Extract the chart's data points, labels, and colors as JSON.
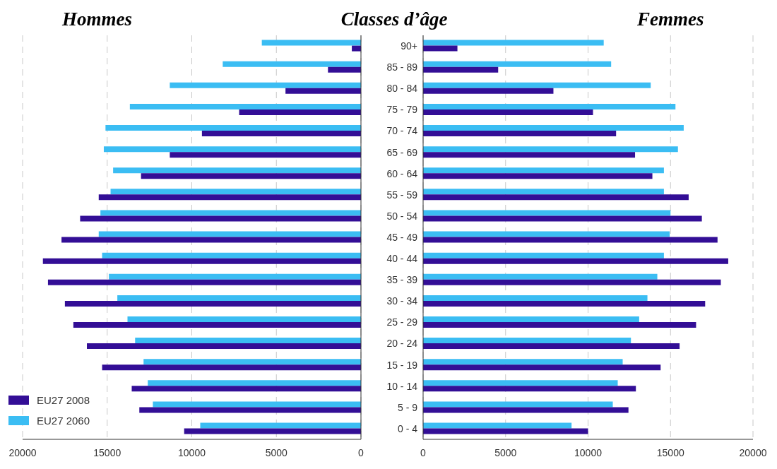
{
  "chart_data": [
    {
      "type": "bar",
      "orientation": "horizontal",
      "title": "Hommes",
      "categories": [
        null,
        null,
        null,
        null,
        null,
        null,
        null,
        null,
        null,
        null,
        null,
        null,
        null,
        null,
        null,
        null,
        null,
        null,
        null
      ],
      "series": [
        {
          "name": "EU27 2008",
          "color": "#330e96",
          "values": [
            540,
            1950,
            4460,
            7200,
            9400,
            11300,
            13000,
            15500,
            16600,
            17700,
            18800,
            18500,
            17500,
            17000,
            16200,
            15300,
            13550,
            13100,
            10450
          ]
        },
        {
          "name": "EU27 2060",
          "color": "#3bbdf3",
          "values": [
            5860,
            8170,
            11300,
            13660,
            15100,
            15200,
            14650,
            14800,
            15400,
            15500,
            15300,
            14900,
            14400,
            13800,
            13350,
            12850,
            12600,
            12300,
            9500
          ]
        }
      ],
      "xlim": [
        20000,
        0
      ],
      "xticks": [
        20000,
        15000,
        10000,
        5000,
        0
      ],
      "grid": "x",
      "legend": "bottom left",
      "tick_labels": "x"
    },
    {
      "type": "bar",
      "orientation": "horizontal",
      "title": "Femmes",
      "ylabel": "Classes d’âge",
      "categories": [
        "90+",
        "85 - 89",
        "80 - 84",
        "75 - 79",
        "70 - 74",
        "65 - 69",
        "60 - 64",
        "55 - 59",
        "50 - 54",
        "45 - 49",
        "40 - 44",
        "35 - 39",
        "30 - 34",
        "25 - 29",
        "20 - 24",
        "15 - 19",
        "10 - 14",
        "5 - 9",
        "0 - 4"
      ],
      "series": [
        {
          "color": "#330e96",
          "values": [
            2080,
            4550,
            7900,
            10300,
            11700,
            12850,
            13900,
            16100,
            16900,
            17850,
            18500,
            18050,
            17100,
            16550,
            15550,
            14400,
            12900,
            12450,
            10000
          ]
        },
        {
          "color": "#3bbdf3",
          "values": [
            10950,
            11400,
            13800,
            15300,
            15800,
            15450,
            14600,
            14600,
            15000,
            14950,
            14600,
            14200,
            13600,
            13100,
            12600,
            12100,
            11800,
            11500,
            9000
          ]
        }
      ],
      "xlim": [
        0,
        20000
      ],
      "xticks": [
        0,
        5000,
        10000,
        15000,
        20000
      ],
      "grid": "x"
    }
  ]
}
